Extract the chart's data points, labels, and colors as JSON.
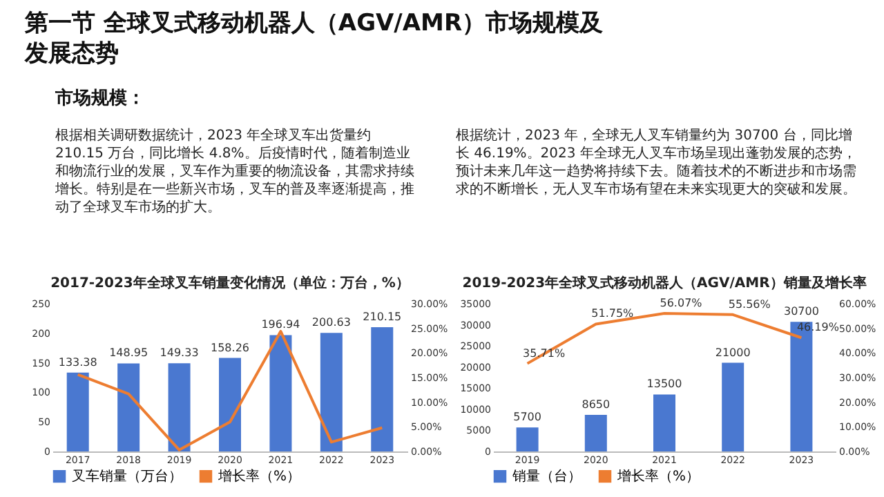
{
  "chart_data": [
    {
      "type": "other",
      "title": "第一节  全球叉式移动机器人（AGV/AMR）市场规模及发展态势",
      "subtitle": "市场规模：",
      "annotations": [
        "根据相关调研数据统计，2023 年全球叉车出货量约 210.15 万台，同比增长 4.8%。后疫情时代，随着制造业和物流行业的发展，叉车作为重要的物流设备，其需求持续增长。特别是在一些新兴市场，叉车的普及率逐渐提高，推动了全球叉车市场的扩大。",
        "根据统计，2023 年，全球无人叉车销量约为 30700 台，同比增长 46.19%。2023 年全球无人叉车市场呈现出蓬勃发展的态势，预计未来几年这一趋势将持续下去。随着技术的不断进步和市场需求的不断增长，无人叉车市场有望在未来实现更大的突破和发展。"
      ]
    },
    {
      "type": "bar",
      "title": "2017-2023年全球叉车销量变化情况（单位：万台，%）",
      "categories": [
        "2017",
        "2018",
        "2019",
        "2020",
        "2021",
        "2022",
        "2023"
      ],
      "series": [
        {
          "name": "叉车销量（万台）",
          "type": "bar",
          "color": "#4a78d0",
          "values": [
            133.38,
            148.95,
            149.33,
            158.26,
            196.94,
            200.63,
            210.15
          ],
          "value_labels": [
            "133.38",
            "148.95",
            "149.33",
            "158.26",
            "196.94",
            "200.63",
            "210.15"
          ]
        },
        {
          "name": "增长率（%）",
          "type": "line",
          "axis": "y2",
          "color": "#ed7d31",
          "values": [
            15.6,
            11.7,
            0.3,
            6.0,
            24.4,
            1.9,
            4.8
          ]
        }
      ],
      "ylim": [
        0,
        250
      ],
      "yticks": [
        0,
        50,
        100,
        150,
        200,
        250
      ],
      "y2lim": [
        0,
        30
      ],
      "y2ticks": [
        {
          "value": 0,
          "label": "0.00%"
        },
        {
          "value": 5,
          "label": "5.00%"
        },
        {
          "value": 10,
          "label": "10.00%"
        },
        {
          "value": 15,
          "label": "15.00%"
        },
        {
          "value": 20,
          "label": "20.00%"
        },
        {
          "value": 25,
          "label": "25.00%"
        },
        {
          "value": 30,
          "label": "30.00%"
        }
      ],
      "legend": "bottom"
    },
    {
      "type": "bar",
      "title": "2019-2023年全球叉式移动机器人（AGV/AMR）销量及增长率",
      "categories": [
        "2019",
        "2020",
        "2021",
        "2022",
        "2023"
      ],
      "series": [
        {
          "name": "销量（台）",
          "type": "bar",
          "color": "#4a78d0",
          "values": [
            5700,
            8650,
            13500,
            21000,
            30700
          ],
          "value_labels": [
            "5700",
            "8650",
            "13500",
            "21000",
            "30700"
          ]
        },
        {
          "name": "增长率（%）",
          "type": "line",
          "axis": "y2",
          "color": "#ed7d31",
          "values": [
            35.71,
            51.75,
            56.07,
            55.56,
            46.19
          ],
          "value_labels": [
            "35.71%",
            "51.75%",
            "56.07%",
            "55.56%",
            "46.19%"
          ]
        }
      ],
      "ylim": [
        0,
        35000
      ],
      "yticks": [
        0,
        5000,
        10000,
        15000,
        20000,
        25000,
        30000,
        35000
      ],
      "y2lim": [
        0,
        60
      ],
      "y2ticks": [
        {
          "value": 0,
          "label": "0.00%"
        },
        {
          "value": 10,
          "label": "10.00%"
        },
        {
          "value": 20,
          "label": "20.00%"
        },
        {
          "value": 30,
          "label": "30.00%"
        },
        {
          "value": 40,
          "label": "40.00%"
        },
        {
          "value": 50,
          "label": "50.00%"
        },
        {
          "value": 60,
          "label": "60.00%"
        }
      ],
      "legend": "bottom"
    }
  ]
}
